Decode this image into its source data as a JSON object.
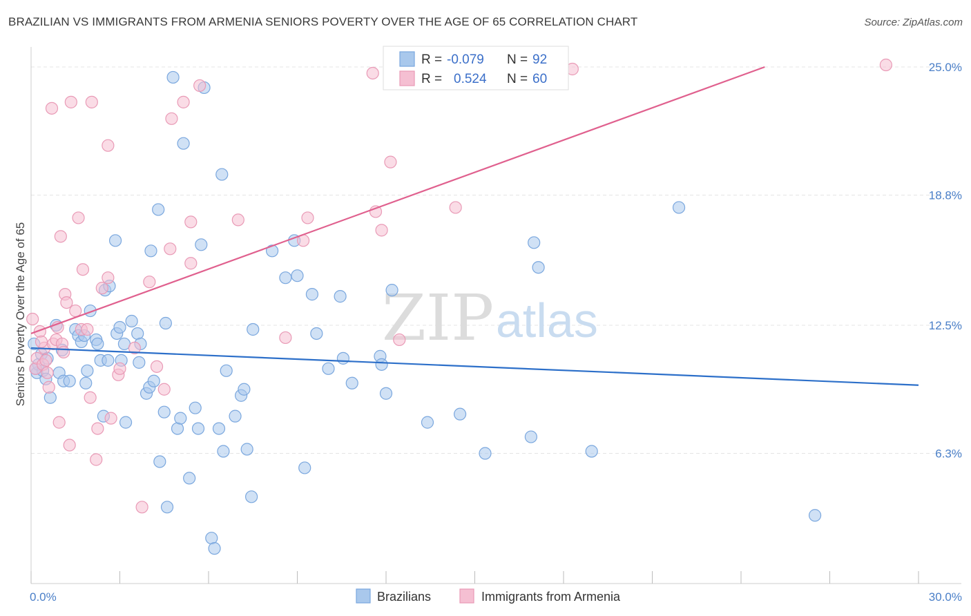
{
  "title": "BRAZILIAN VS IMMIGRANTS FROM ARMENIA SENIORS POVERTY OVER THE AGE OF 65 CORRELATION CHART",
  "source": "Source: ZipAtlas.com",
  "watermark": {
    "part1": "ZIP",
    "part2": "atlas"
  },
  "colors": {
    "blue_fill": "#a9c8ec",
    "blue_stroke": "#7aa7de",
    "blue_line": "#2c6fc9",
    "pink_fill": "#f5bfd2",
    "pink_stroke": "#e99ab6",
    "pink_line": "#e0608e",
    "tick_text": "#4a7fc8",
    "grid": "#e4e4e4"
  },
  "stats": {
    "blue": {
      "r_label": "R =",
      "r_value": "-0.079",
      "n_label": "N =",
      "n_value": "92"
    },
    "pink": {
      "r_label": "R =",
      "r_value": "0.524",
      "n_label": "N =",
      "n_value": "60"
    }
  },
  "chart_data": {
    "type": "scatter",
    "title": "BRAZILIAN VS IMMIGRANTS FROM ARMENIA SENIORS POVERTY OVER THE AGE OF 65 CORRELATION CHART",
    "xlabel": "",
    "ylabel": "Seniors Poverty Over the Age of 65",
    "xlim": [
      0,
      30
    ],
    "ylim": [
      0,
      25.6
    ],
    "x_tick_labels": [
      "0.0%",
      "30.0%"
    ],
    "y_ticks": [
      6.3,
      12.5,
      18.8,
      25.0
    ],
    "y_tick_labels": [
      "6.3%",
      "12.5%",
      "18.8%",
      "25.0%"
    ],
    "grid": true,
    "legend_position": "bottom-center",
    "series": [
      {
        "name": "Brazilians",
        "color": "#a9c8ec",
        "trend": [
          [
            0,
            11.4
          ],
          [
            30,
            9.6
          ]
        ],
        "points": [
          [
            0.1,
            11.6
          ],
          [
            0.2,
            10.2
          ],
          [
            0.25,
            10.6
          ],
          [
            0.35,
            11.1
          ],
          [
            0.4,
            10.3
          ],
          [
            0.5,
            9.9
          ],
          [
            0.55,
            10.9
          ],
          [
            0.65,
            9.0
          ],
          [
            0.85,
            12.5
          ],
          [
            0.95,
            10.2
          ],
          [
            1.05,
            11.3
          ],
          [
            1.1,
            9.8
          ],
          [
            1.3,
            9.8
          ],
          [
            1.5,
            12.3
          ],
          [
            1.6,
            12.0
          ],
          [
            1.7,
            11.7
          ],
          [
            1.8,
            12.0
          ],
          [
            1.85,
            9.7
          ],
          [
            1.9,
            10.3
          ],
          [
            2.0,
            13.2
          ],
          [
            2.2,
            11.8
          ],
          [
            2.25,
            11.6
          ],
          [
            2.35,
            10.8
          ],
          [
            2.45,
            8.1
          ],
          [
            2.5,
            14.2
          ],
          [
            2.6,
            10.8
          ],
          [
            2.65,
            14.4
          ],
          [
            2.85,
            16.6
          ],
          [
            2.9,
            12.1
          ],
          [
            3.0,
            12.4
          ],
          [
            3.05,
            10.8
          ],
          [
            3.15,
            11.6
          ],
          [
            3.2,
            7.8
          ],
          [
            3.4,
            12.7
          ],
          [
            3.6,
            12.1
          ],
          [
            3.65,
            10.7
          ],
          [
            3.7,
            11.6
          ],
          [
            3.9,
            9.2
          ],
          [
            4.0,
            9.5
          ],
          [
            4.05,
            16.1
          ],
          [
            4.15,
            9.8
          ],
          [
            4.3,
            18.1
          ],
          [
            4.35,
            5.9
          ],
          [
            4.5,
            8.3
          ],
          [
            4.55,
            12.6
          ],
          [
            4.6,
            3.7
          ],
          [
            4.8,
            24.5
          ],
          [
            4.95,
            7.5
          ],
          [
            5.05,
            8.0
          ],
          [
            5.15,
            21.3
          ],
          [
            5.35,
            5.1
          ],
          [
            5.55,
            8.5
          ],
          [
            5.65,
            7.5
          ],
          [
            5.75,
            16.4
          ],
          [
            5.85,
            24.0
          ],
          [
            6.1,
            2.2
          ],
          [
            6.2,
            1.7
          ],
          [
            6.35,
            7.5
          ],
          [
            6.45,
            19.8
          ],
          [
            6.5,
            6.4
          ],
          [
            6.6,
            10.3
          ],
          [
            6.9,
            8.1
          ],
          [
            7.1,
            9.1
          ],
          [
            7.2,
            9.4
          ],
          [
            7.3,
            6.5
          ],
          [
            7.45,
            4.2
          ],
          [
            7.5,
            12.3
          ],
          [
            8.15,
            16.1
          ],
          [
            8.6,
            14.8
          ],
          [
            8.9,
            16.6
          ],
          [
            9.0,
            14.9
          ],
          [
            9.25,
            5.6
          ],
          [
            9.5,
            14.0
          ],
          [
            9.65,
            12.1
          ],
          [
            10.05,
            10.4
          ],
          [
            10.45,
            13.9
          ],
          [
            10.55,
            10.9
          ],
          [
            10.85,
            9.7
          ],
          [
            11.8,
            11.0
          ],
          [
            11.85,
            10.6
          ],
          [
            12.0,
            9.2
          ],
          [
            12.2,
            14.2
          ],
          [
            13.4,
            7.8
          ],
          [
            14.5,
            8.2
          ],
          [
            15.35,
            6.3
          ],
          [
            16.9,
            7.1
          ],
          [
            17.0,
            16.5
          ],
          [
            17.15,
            15.3
          ],
          [
            18.95,
            6.4
          ],
          [
            21.9,
            18.2
          ],
          [
            26.5,
            3.3
          ],
          [
            0.15,
            10.4
          ]
        ]
      },
      {
        "name": "Immigrants from Armenia",
        "color": "#f5bfd2",
        "trend": [
          [
            0,
            12.1
          ],
          [
            24.8,
            25.0
          ]
        ],
        "points": [
          [
            0.05,
            12.8
          ],
          [
            0.15,
            10.4
          ],
          [
            0.2,
            10.9
          ],
          [
            0.3,
            12.2
          ],
          [
            0.4,
            10.6
          ],
          [
            0.45,
            11.4
          ],
          [
            0.55,
            10.2
          ],
          [
            0.6,
            9.5
          ],
          [
            0.7,
            23.0
          ],
          [
            0.75,
            11.6
          ],
          [
            0.85,
            11.8
          ],
          [
            0.9,
            12.4
          ],
          [
            0.95,
            7.8
          ],
          [
            1.0,
            16.8
          ],
          [
            1.05,
            11.6
          ],
          [
            1.1,
            11.2
          ],
          [
            1.15,
            14.0
          ],
          [
            1.2,
            13.6
          ],
          [
            1.3,
            6.7
          ],
          [
            1.35,
            23.3
          ],
          [
            1.5,
            13.2
          ],
          [
            1.6,
            17.7
          ],
          [
            1.7,
            12.3
          ],
          [
            1.75,
            15.2
          ],
          [
            1.9,
            12.3
          ],
          [
            2.0,
            9.0
          ],
          [
            2.05,
            23.3
          ],
          [
            2.2,
            6.0
          ],
          [
            2.25,
            7.5
          ],
          [
            2.4,
            14.3
          ],
          [
            2.6,
            14.8
          ],
          [
            2.6,
            21.2
          ],
          [
            2.7,
            8.0
          ],
          [
            2.95,
            10.1
          ],
          [
            3.0,
            10.4
          ],
          [
            3.5,
            11.4
          ],
          [
            3.75,
            3.7
          ],
          [
            4.0,
            14.6
          ],
          [
            4.25,
            10.5
          ],
          [
            4.5,
            9.4
          ],
          [
            4.7,
            16.2
          ],
          [
            4.75,
            22.5
          ],
          [
            5.15,
            23.3
          ],
          [
            5.4,
            15.5
          ],
          [
            5.4,
            17.5
          ],
          [
            5.7,
            24.1
          ],
          [
            7.0,
            17.6
          ],
          [
            8.6,
            11.9
          ],
          [
            9.2,
            16.6
          ],
          [
            9.35,
            17.7
          ],
          [
            11.55,
            24.7
          ],
          [
            11.65,
            18.0
          ],
          [
            11.85,
            17.1
          ],
          [
            12.15,
            20.4
          ],
          [
            12.45,
            11.8
          ],
          [
            14.35,
            18.2
          ],
          [
            18.3,
            24.9
          ],
          [
            28.9,
            25.1
          ],
          [
            0.35,
            11.7
          ],
          [
            0.5,
            10.8
          ]
        ]
      }
    ]
  }
}
